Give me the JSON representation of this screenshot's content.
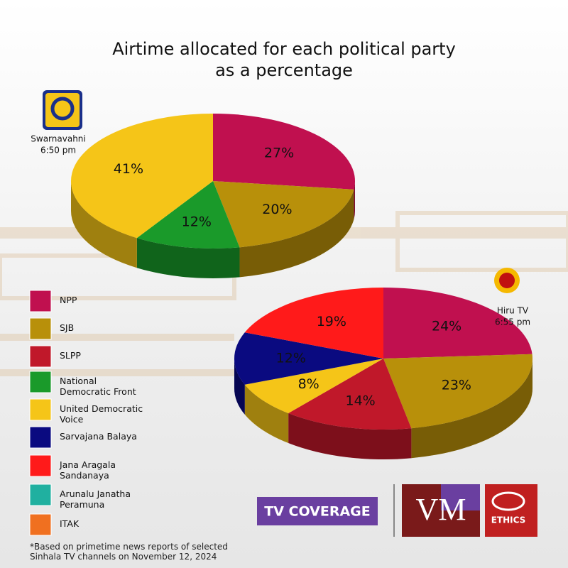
{
  "title_lines": [
    "Airtime allocated for each political party",
    "as a percentage"
  ],
  "legend": [
    {
      "name": "NPP",
      "color": "#c0104f"
    },
    {
      "name": "SJB",
      "color": "#b8900a"
    },
    {
      "name": "SLPP",
      "color": "#c0182a"
    },
    {
      "name": "National Democratic Front",
      "color": "#1a9a2a"
    },
    {
      "name": "United Democratic Voice",
      "color": "#f5c518"
    },
    {
      "name": "Sarvajana Balaya",
      "color": "#0a0a80"
    },
    {
      "name": "Jana Aragala Sandanaya",
      "color": "#ff1a1a"
    },
    {
      "name": "Arunalu Janatha Peramuna",
      "color": "#20b0a0"
    },
    {
      "name": "ITAK",
      "color": "#f07020"
    }
  ],
  "chart_data": [
    {
      "type": "pie",
      "channel": "Swarnavahni",
      "time": "6:50 pm",
      "categories": [
        "NPP",
        "SJB",
        "National Democratic Front",
        "United Democratic Voice"
      ],
      "values": [
        27,
        20,
        12,
        41
      ],
      "value_labels": [
        "27%",
        "20%",
        "12%",
        "41%"
      ]
    },
    {
      "type": "pie",
      "channel": "Hiru TV",
      "time": "6:55 pm",
      "categories": [
        "NPP",
        "SJB",
        "SLPP",
        "United Democratic Voice",
        "Sarvajana Balaya",
        "Jana Aragala Sandanaya"
      ],
      "values": [
        24,
        23,
        14,
        8,
        12,
        19
      ],
      "value_labels": [
        "24%",
        "23%",
        "14%",
        "8%",
        "12%",
        "19%"
      ]
    }
  ],
  "footnote_lines": [
    "*Based on primetime news reports of selected",
    "Sinhala TV channels on November 12, 2024"
  ],
  "badge": "TV COVERAGE",
  "logo_vm": "VM",
  "logo_ethics": "ETHICS"
}
